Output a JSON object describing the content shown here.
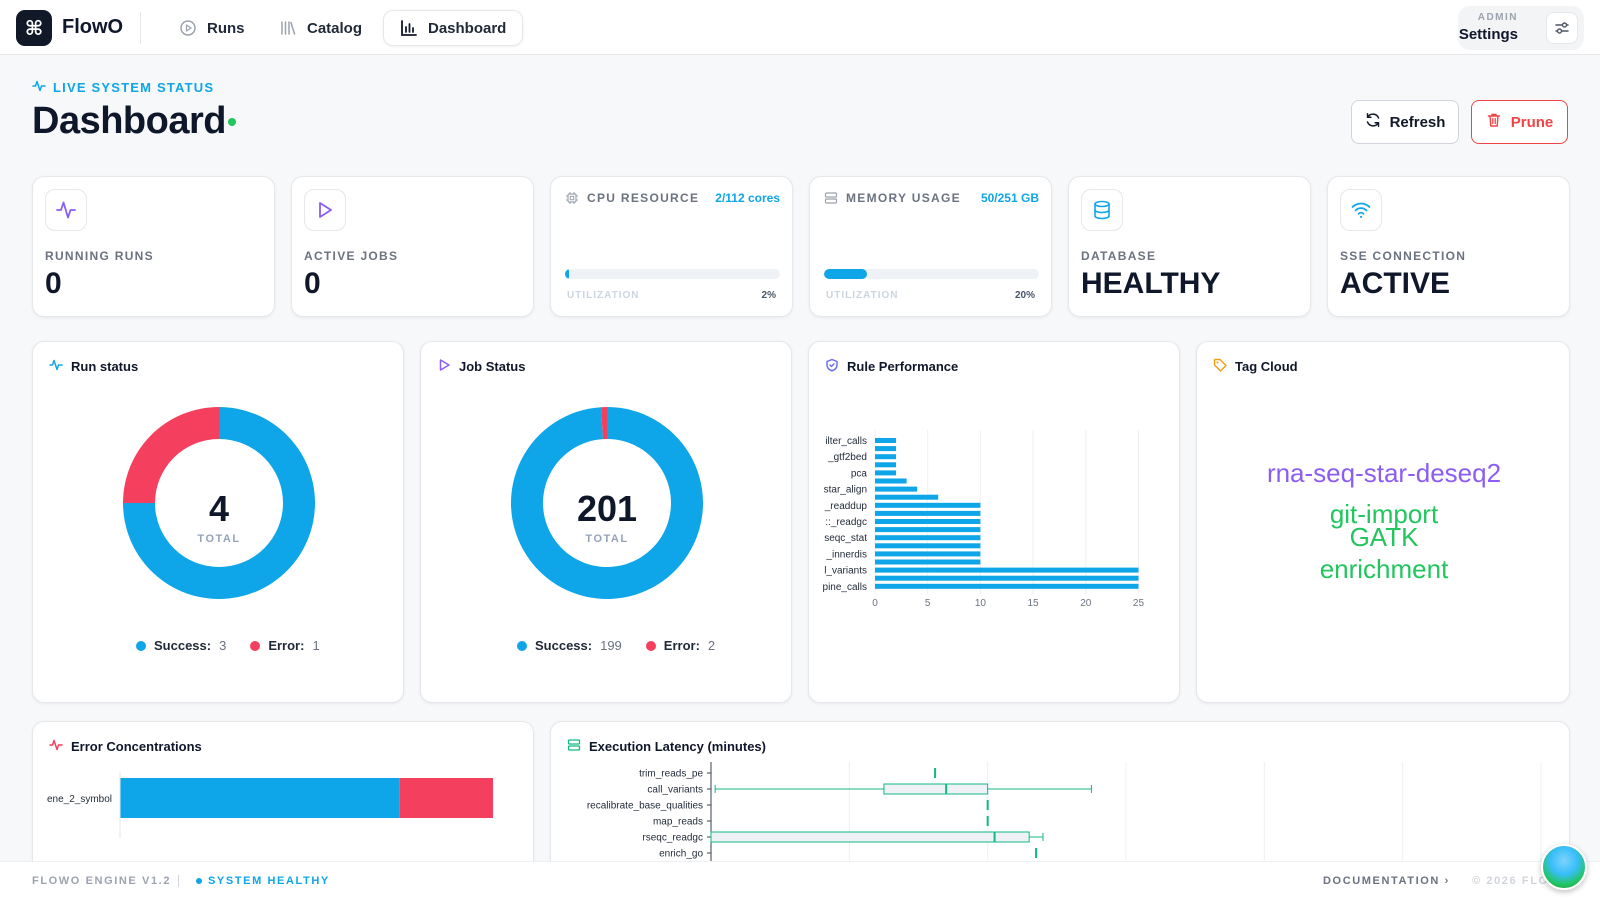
{
  "app": {
    "logo_glyph": "⌘",
    "name": "FlowO"
  },
  "nav": [
    {
      "label": "Runs",
      "icon": "play-circle-icon"
    },
    {
      "label": "Catalog",
      "icon": "library-icon"
    },
    {
      "label": "Dashboard",
      "icon": "bar-chart-icon",
      "active": true
    }
  ],
  "settings": {
    "role": "ADMIN",
    "label": "Settings",
    "icon": "sliders-icon"
  },
  "header": {
    "status_label": "LIVE SYSTEM STATUS",
    "title": "Dashboard",
    "refresh_label": "Refresh",
    "prune_label": "Prune"
  },
  "stats": {
    "running_runs": {
      "label": "RUNNING RUNS",
      "value": "0"
    },
    "active_jobs": {
      "label": "ACTIVE JOBS",
      "value": "0"
    },
    "cpu": {
      "label": "CPU RESOURCE",
      "value": "2/112 cores",
      "sub": "UTILIZATION",
      "pct_label": "2%",
      "fraction": 0.02
    },
    "memory": {
      "label": "MEMORY USAGE",
      "value": "50/251 GB",
      "sub": "UTILIZATION",
      "pct_label": "20%",
      "fraction": 0.2
    },
    "database": {
      "label": "DATABASE",
      "value": "HEALTHY"
    },
    "sse": {
      "label": "SSE CONNECTION",
      "value": "ACTIVE"
    }
  },
  "panels": {
    "run_status": {
      "title": "Run status",
      "total": "4",
      "total_label": "TOTAL",
      "success_label": "Success:",
      "success_value": "3",
      "error_label": "Error:",
      "error_value": "1"
    },
    "job_status": {
      "title": "Job Status",
      "total": "201",
      "total_label": "TOTAL",
      "success_label": "Success:",
      "success_value": "199",
      "error_label": "Error:",
      "error_value": "2"
    },
    "rule_performance": {
      "title": "Rule Performance"
    },
    "tag_cloud": {
      "title": "Tag Cloud"
    },
    "error_concentrations": {
      "title": "Error Concentrations"
    },
    "execution_latency": {
      "title": "Execution Latency (minutes)"
    }
  },
  "tags": [
    {
      "text": "rna-seq-star-deseq2",
      "color": "#8b5cf6"
    },
    {
      "text": "git-import",
      "color": "#22c55e"
    },
    {
      "text": "GATK",
      "color": "#22c55e"
    },
    {
      "text": "enrichment",
      "color": "#22c55e"
    }
  ],
  "colors": {
    "accent": "#0ea5e9",
    "error": "#f43f5e",
    "success_green": "#22c55e",
    "box_green": "#10b981"
  },
  "chart_data": [
    {
      "type": "pie",
      "title": "Run status",
      "categories": [
        "Success",
        "Error"
      ],
      "values": [
        3,
        1
      ],
      "colors": [
        "#0ea5e9",
        "#f43f5e"
      ],
      "style": "donut"
    },
    {
      "type": "pie",
      "title": "Job Status",
      "categories": [
        "Success",
        "Error"
      ],
      "values": [
        199,
        2
      ],
      "colors": [
        "#0ea5e9",
        "#f43f5e"
      ],
      "style": "donut"
    },
    {
      "type": "bar",
      "title": "Rule Performance",
      "orientation": "horizontal",
      "rows": [
        {
          "label": "ilter_calls",
          "value": 2
        },
        {
          "label": "",
          "value": 2
        },
        {
          "label": "_gtf2bed",
          "value": 2
        },
        {
          "label": "",
          "value": 2
        },
        {
          "label": "pca",
          "value": 2
        },
        {
          "label": "",
          "value": 3
        },
        {
          "label": "star_align",
          "value": 4
        },
        {
          "label": "",
          "value": 6
        },
        {
          "label": "_readdup",
          "value": 10
        },
        {
          "label": "",
          "value": 10
        },
        {
          "label": "::_readgc",
          "value": 10
        },
        {
          "label": "",
          "value": 10
        },
        {
          "label": "seqc_stat",
          "value": 10
        },
        {
          "label": "",
          "value": 10
        },
        {
          "label": "_innerdis",
          "value": 10
        },
        {
          "label": "",
          "value": 10
        },
        {
          "label": "l_variants",
          "value": 25
        },
        {
          "label": "",
          "value": 25
        },
        {
          "label": "pine_calls",
          "value": 25
        }
      ],
      "xticks": [
        0,
        5,
        10,
        15,
        20,
        25
      ],
      "xlim": [
        0,
        26
      ],
      "color": "#0ea5e9",
      "grid": true
    },
    {
      "type": "bar",
      "title": "Error Concentrations",
      "orientation": "horizontal",
      "stacked": true,
      "categories": [
        "ene_2_symbol"
      ],
      "series": [
        {
          "values": [
            75
          ],
          "color": "#0ea5e9"
        },
        {
          "values": [
            25
          ],
          "color": "#f43f5e"
        }
      ]
    },
    {
      "type": "boxplot",
      "title": "Execution Latency (minutes)",
      "categories": [
        "trim_reads_pe",
        "call_variants",
        "recalibrate_base_qualities",
        "map_reads",
        "rseqc_readgc",
        "enrich_go"
      ],
      "boxes": [
        {
          "min": 16.2,
          "q1": 16.2,
          "median": 16.2,
          "q3": 16.2,
          "max": 16.2
        },
        {
          "min": 0.3,
          "q1": 12.5,
          "median": 17.0,
          "q3": 20.0,
          "max": 27.5
        },
        {
          "min": 20.0,
          "q1": 20.0,
          "median": 20.0,
          "q3": 20.0,
          "max": 20.0
        },
        {
          "min": 20.0,
          "q1": 20.0,
          "median": 20.0,
          "q3": 20.0,
          "max": 20.0
        },
        {
          "min": 0,
          "q1": 0,
          "median": 20.5,
          "q3": 23.0,
          "max": 24.0
        },
        {
          "min": 23.5,
          "q1": 23.5,
          "median": 23.5,
          "q3": 23.5,
          "max": 23.5
        }
      ],
      "grid": true,
      "color": "#10b981"
    }
  ],
  "footer": {
    "version": "FLOWO ENGINE V1.2",
    "health": "SYSTEM HEALTHY",
    "docs": "DOCUMENTATION  ›",
    "copyright": "© 2026 FLOWO"
  }
}
